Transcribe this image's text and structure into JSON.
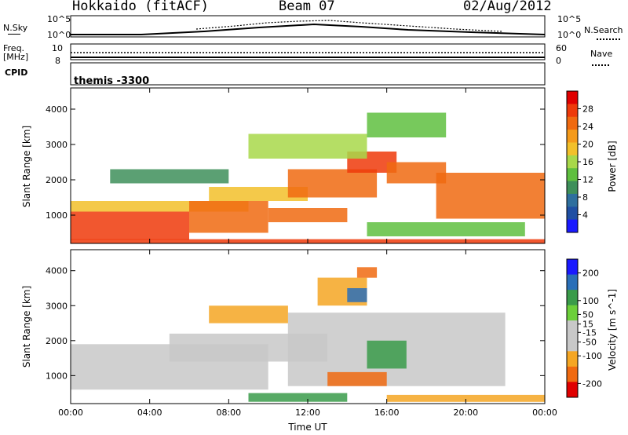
{
  "header": {
    "title": "Hokkaido (fitACF)",
    "beam": "Beam 07",
    "date": "02/Aug/2012"
  },
  "small_panels": {
    "nsky": {
      "label": "N.Sky",
      "yticks": [
        "10^5",
        "10^0"
      ],
      "right_ticks": [
        "10^5",
        "10^0"
      ],
      "right_label": "N.Search"
    },
    "freq": {
      "label": "Freq.",
      "unit": "[MHz]",
      "yticks": [
        "10",
        "8"
      ],
      "right_ticks": [
        "60",
        "0"
      ],
      "right_label": "Nave"
    },
    "cpid": {
      "label": "CPID",
      "value": "themis -3300"
    }
  },
  "colors": {
    "power_scale": [
      "#1a1aff",
      "#1f4fa3",
      "#2e6f9e",
      "#3e8f5a",
      "#5fbf3f",
      "#a8d84a",
      "#f2c02a",
      "#f59a1a",
      "#f06a10",
      "#ee3a0a",
      "#e00000"
    ],
    "velocity_scale": [
      "#e00000",
      "#f06a10",
      "#f5a623",
      "#c8c8c8",
      "#c8c8c8",
      "#6ccf3a",
      "#3a9b4a",
      "#2a6fb8",
      "#1a1aff"
    ]
  },
  "chart_data": [
    {
      "type": "heatmap",
      "title": "Power",
      "ylabel": "Slant Range [km]",
      "xlabel": "",
      "x_ticks": [
        "00:00",
        "04:00",
        "08:00",
        "12:00",
        "16:00",
        "20:00",
        "00:00"
      ],
      "x_range_hours": [
        0,
        24
      ],
      "y_ticks": [
        1000,
        2000,
        3000,
        4000
      ],
      "ylim": [
        200,
        4600
      ],
      "colorbar": {
        "label": "Power [dB]",
        "ticks": [
          4,
          8,
          12,
          16,
          20,
          24,
          28
        ],
        "range": [
          0,
          32
        ]
      },
      "bands": [
        {
          "t0": 0,
          "t1": 6,
          "r0": 300,
          "r1": 1100,
          "value": 28
        },
        {
          "t0": 0,
          "t1": 9,
          "r0": 1100,
          "r1": 1400,
          "value": 18
        },
        {
          "t0": 0,
          "t1": 24,
          "r0": 200,
          "r1": 320,
          "value": 30
        },
        {
          "t0": 6,
          "t1": 10,
          "r0": 500,
          "r1": 1400,
          "value": 26
        },
        {
          "t0": 7,
          "t1": 12,
          "r0": 1400,
          "r1": 1800,
          "value": 20
        },
        {
          "t0": 10,
          "t1": 14,
          "r0": 800,
          "r1": 1200,
          "value": 24
        },
        {
          "t0": 11,
          "t1": 15.5,
          "r0": 1500,
          "r1": 2300,
          "value": 26
        },
        {
          "t0": 14,
          "t1": 16.5,
          "r0": 2200,
          "r1": 2800,
          "value": 28
        },
        {
          "t0": 16,
          "t1": 19,
          "r0": 1900,
          "r1": 2500,
          "value": 24
        },
        {
          "t0": 18.5,
          "t1": 24,
          "r0": 900,
          "r1": 2200,
          "value": 26
        },
        {
          "t0": 9,
          "t1": 15,
          "r0": 2600,
          "r1": 3300,
          "value": 16
        },
        {
          "t0": 15,
          "t1": 19,
          "r0": 3200,
          "r1": 3900,
          "value": 12
        },
        {
          "t0": 2,
          "t1": 8,
          "r0": 1900,
          "r1": 2300,
          "value": 10
        },
        {
          "t0": 15,
          "t1": 23,
          "r0": 400,
          "r1": 800,
          "value": 14
        }
      ]
    },
    {
      "type": "heatmap",
      "title": "Velocity",
      "ylabel": "Slant Range [km]",
      "xlabel": "Time UT",
      "x_ticks": [
        "00:00",
        "04:00",
        "08:00",
        "12:00",
        "16:00",
        "20:00",
        "00:00"
      ],
      "x_range_hours": [
        0,
        24
      ],
      "y_ticks": [
        1000,
        2000,
        3000,
        4000
      ],
      "ylim": [
        200,
        4600
      ],
      "colorbar": {
        "label": "Velocity [m s^-1]",
        "ticks": [
          200,
          100,
          50,
          15,
          -15,
          -50,
          -100,
          -200
        ],
        "range": [
          -250,
          250
        ]
      },
      "bands": [
        {
          "t0": 0,
          "t1": 10,
          "r0": 600,
          "r1": 1900,
          "value": 0
        },
        {
          "t0": 5,
          "t1": 13,
          "r0": 1400,
          "r1": 2200,
          "value": 0
        },
        {
          "t0": 11,
          "t1": 22,
          "r0": 700,
          "r1": 2800,
          "value": 0
        },
        {
          "t0": 15,
          "t1": 17,
          "r0": 1200,
          "r1": 2000,
          "value": 70
        },
        {
          "t0": 13,
          "t1": 16,
          "r0": 700,
          "r1": 1100,
          "value": -80
        },
        {
          "t0": 9,
          "t1": 14,
          "r0": 250,
          "r1": 500,
          "value": 60
        },
        {
          "t0": 16,
          "t1": 24,
          "r0": 250,
          "r1": 450,
          "value": -60
        },
        {
          "t0": 12.5,
          "t1": 15,
          "r0": 3000,
          "r1": 3800,
          "value": -40
        },
        {
          "t0": 14,
          "t1": 15,
          "r0": 3100,
          "r1": 3500,
          "value": 120
        },
        {
          "t0": 14.5,
          "t1": 15.5,
          "r0": 3800,
          "r1": 4100,
          "value": -150
        },
        {
          "t0": 7,
          "t1": 11,
          "r0": 2500,
          "r1": 3000,
          "value": -30
        }
      ]
    }
  ]
}
